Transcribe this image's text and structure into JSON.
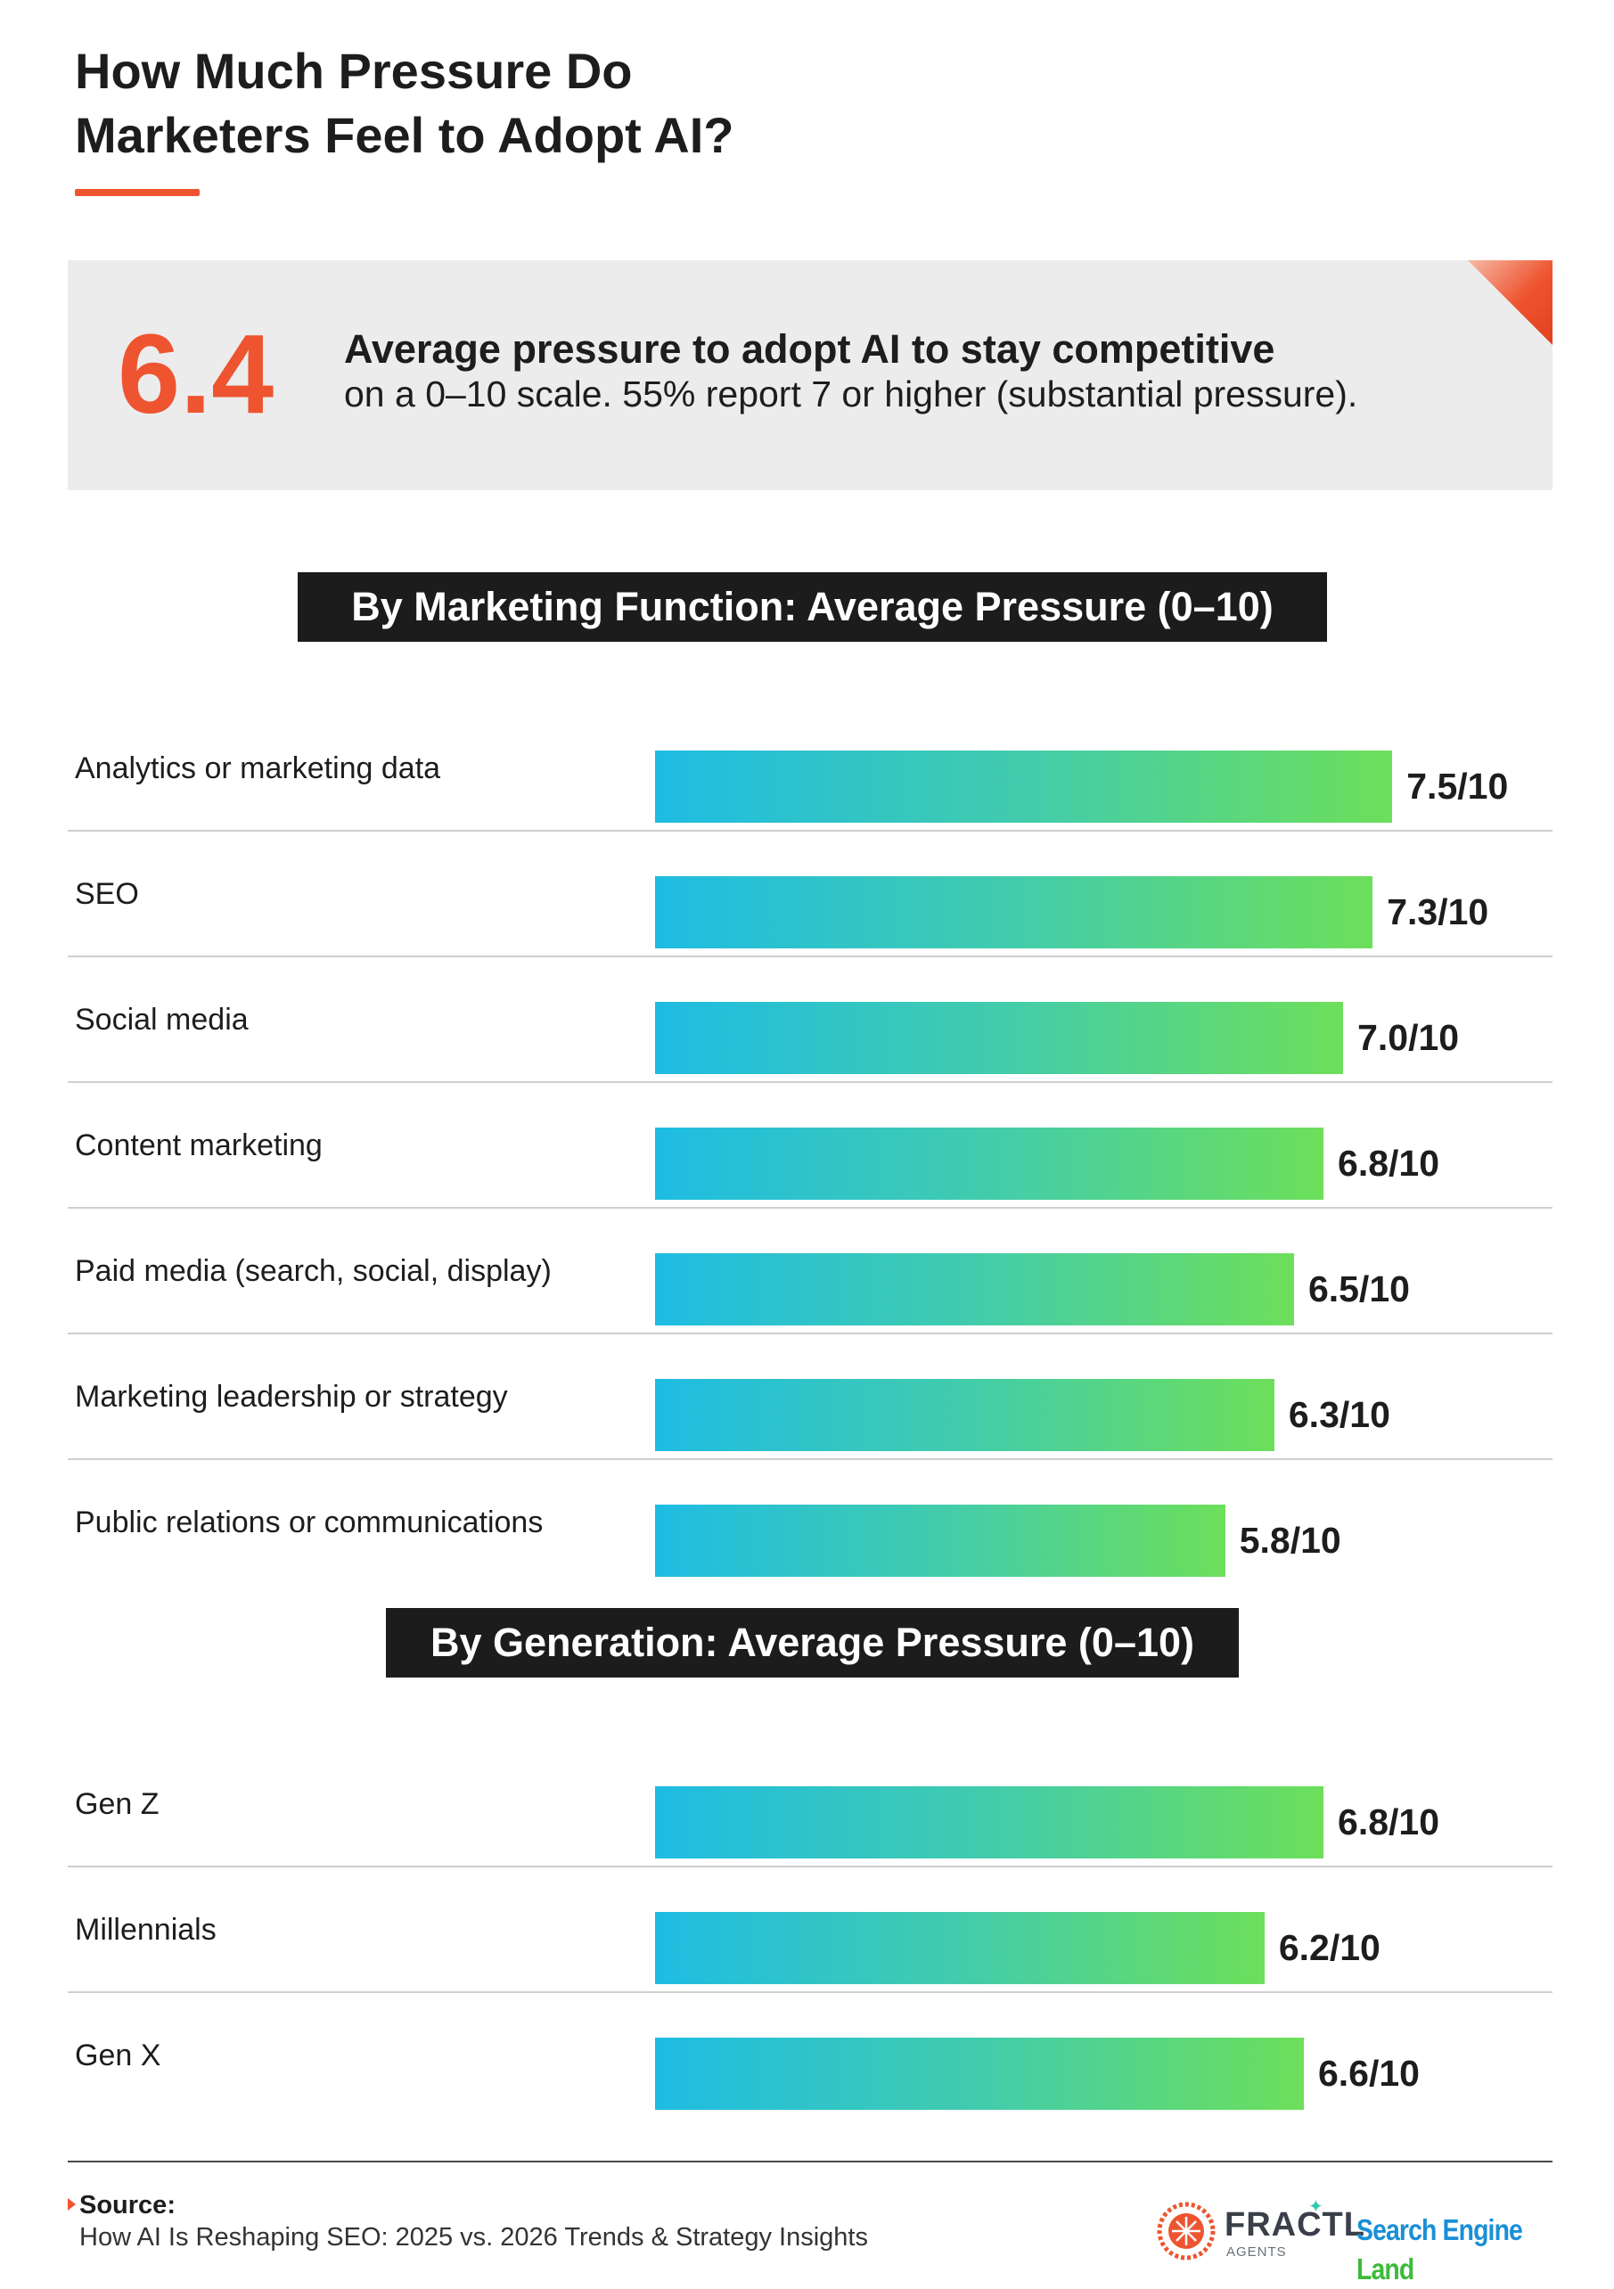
{
  "header": {
    "title_line1": "How Much Pressure Do",
    "title_line2": "Marketers Feel to Adopt AI?"
  },
  "stat": {
    "value": "6.4",
    "headline": "Average pressure to adopt AI to stay competitive",
    "detail": "on a 0–10 scale. 55% report 7 or higher (substantial pressure)."
  },
  "colors": {
    "accent": "#ee5430",
    "bar_gradient_start": "#1ebce3",
    "bar_gradient_end": "#6ddf5a",
    "section_title_bg": "#1c1c1c"
  },
  "chart_data": [
    {
      "type": "bar",
      "orientation": "horizontal",
      "title": "By Marketing Function: Average Pressure (0–10)",
      "categories": [
        "Analytics or marketing data",
        "SEO",
        "Social media",
        "Content marketing",
        "Paid media (search, social, display)",
        "Marketing leadership or strategy",
        "Public relations or communications"
      ],
      "values": [
        7.5,
        7.3,
        7.0,
        6.8,
        6.5,
        6.3,
        5.8
      ],
      "data_labels": [
        "7.5/10",
        "7.3/10",
        "7.0/10",
        "6.8/10",
        "6.5/10",
        "6.3/10",
        "5.8/10"
      ],
      "xlim": [
        0,
        10
      ],
      "grid": false
    },
    {
      "type": "bar",
      "orientation": "horizontal",
      "title": "By Generation: Average Pressure (0–10)",
      "categories": [
        "Gen Z",
        "Millennials",
        "Gen X"
      ],
      "values": [
        6.8,
        6.2,
        6.6
      ],
      "data_labels": [
        "6.8/10",
        "6.2/10",
        "6.6/10"
      ],
      "xlim": [
        0,
        10
      ],
      "grid": false
    }
  ],
  "footer": {
    "source_label": "Source:",
    "source_text": "How AI Is Reshaping SEO: 2025 vs. 2026 Trends & Strategy Insights",
    "logo_fractl": "FRACTL",
    "logo_fractl_sub": "AGENTS",
    "logo_sel_main": "Search Engine",
    "logo_sel_accent": "Land"
  }
}
